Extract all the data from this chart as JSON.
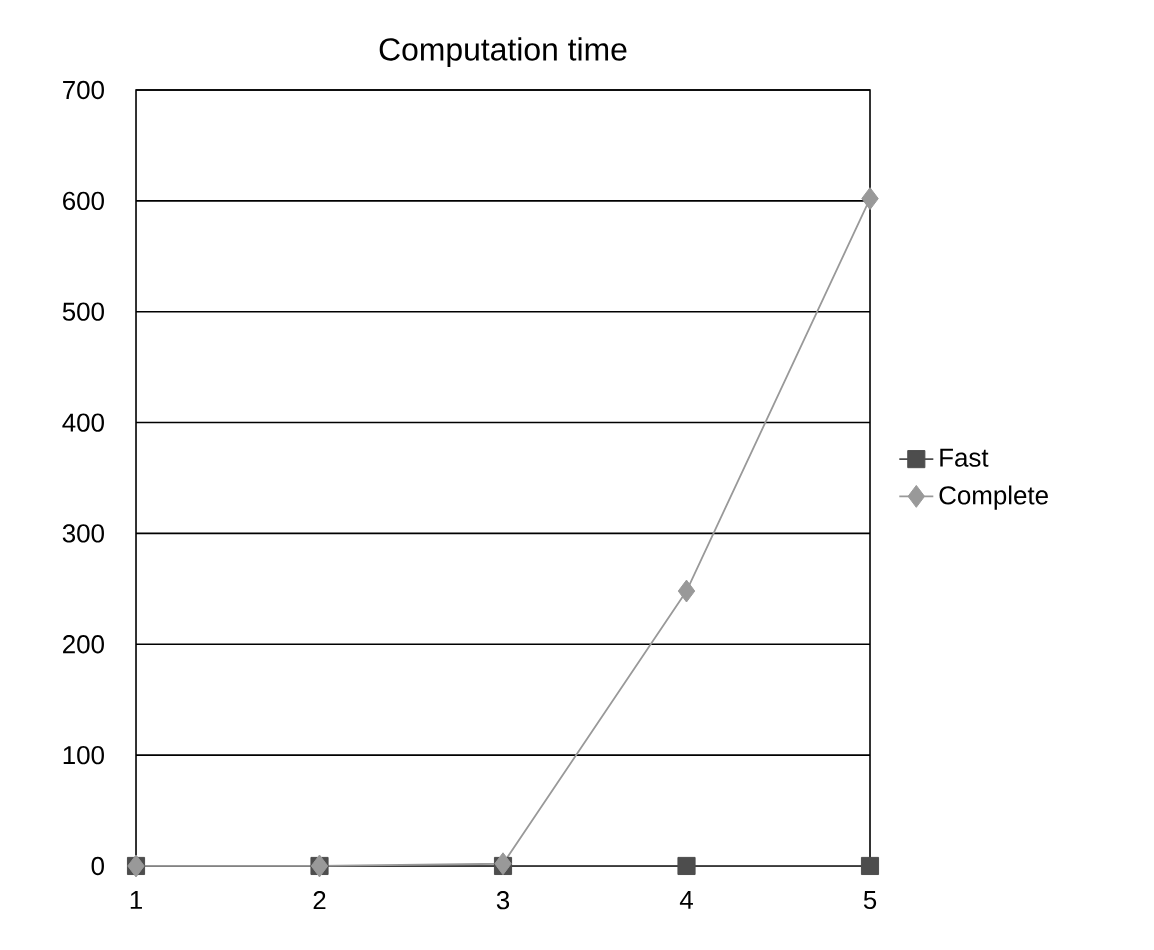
{
  "chart_data": {
    "type": "line",
    "title": "Computation time",
    "x": [
      1,
      2,
      3,
      4,
      5
    ],
    "xlim": [
      1,
      5
    ],
    "xticks": [
      1,
      2,
      3,
      4,
      5
    ],
    "ylim": [
      0,
      700
    ],
    "yticks": [
      0,
      100,
      200,
      300,
      400,
      500,
      600,
      700
    ],
    "grid": "y",
    "legend": "right",
    "line_style": "solid",
    "series": [
      {
        "name": "Fast",
        "color": "#4d4d4d",
        "marker": "square",
        "values": [
          0,
          0,
          0,
          0,
          0
        ]
      },
      {
        "name": "Complete",
        "color": "#999999",
        "marker": "diamond",
        "values": [
          0,
          0,
          2,
          248,
          602
        ]
      }
    ]
  }
}
